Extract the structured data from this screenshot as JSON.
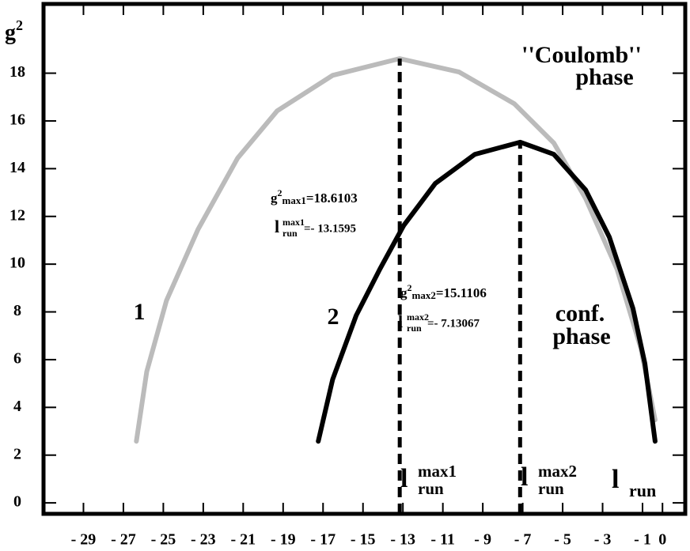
{
  "chart_data": {
    "type": "line",
    "ylabel": "g",
    "ylabel_sup": "2",
    "xlim": [
      -31,
      1.14
    ],
    "ylim": [
      -0.46,
      20.9
    ],
    "xticks": [
      {
        "value": -29,
        "label": "- 29"
      },
      {
        "value": -27,
        "label": "- 27"
      },
      {
        "value": -25,
        "label": "- 25"
      },
      {
        "value": -23,
        "label": "- 23"
      },
      {
        "value": -21,
        "label": "- 21"
      },
      {
        "value": -19,
        "label": "- 19"
      },
      {
        "value": -17,
        "label": "- 17"
      },
      {
        "value": -15,
        "label": "- 15"
      },
      {
        "value": -13,
        "label": "- 13"
      },
      {
        "value": -11,
        "label": "- 11"
      },
      {
        "value": -9,
        "label": "- 9"
      },
      {
        "value": -7,
        "label": "- 7"
      },
      {
        "value": -5,
        "label": "- 5"
      },
      {
        "value": -3,
        "label": "- 3"
      },
      {
        "value": -1,
        "label": "- 1"
      },
      0
    ],
    "yticks": [
      0,
      2,
      4,
      6,
      8,
      10,
      12,
      14,
      16,
      18
    ],
    "series": [
      {
        "name": "1",
        "color": "#bbbbbb",
        "x": [
          -26.35,
          -25.83,
          -24.84,
          -23.26,
          -21.28,
          -19.3,
          -16.52,
          -13.16,
          -10.19,
          -7.42,
          -5.44,
          -3.85,
          -2.27,
          -1.08,
          -0.37
        ],
        "values": [
          2.58,
          5.5,
          8.48,
          11.46,
          14.44,
          16.42,
          17.91,
          18.61,
          18.05,
          16.72,
          15.07,
          12.75,
          9.77,
          6.46,
          3.48
        ]
      },
      {
        "name": "2",
        "color": "#000000",
        "x": [
          -17.24,
          -16.52,
          -15.34,
          -14.15,
          -12.96,
          -11.38,
          -9.4,
          -7.13,
          -5.44,
          -3.85,
          -2.66,
          -1.48,
          -0.88,
          -0.37
        ],
        "values": [
          2.58,
          5.17,
          7.85,
          9.8,
          11.62,
          13.38,
          14.6,
          15.11,
          14.6,
          13.11,
          11.13,
          8.15,
          5.83,
          2.58
        ]
      }
    ],
    "vlines": [
      {
        "x": -13.1595,
        "y": 18.6103
      },
      {
        "x": -7.13067,
        "y": 15.1106
      }
    ],
    "region_labels": [
      "''Coulomb''",
      "phase",
      "conf.",
      "phase"
    ],
    "peak_labels": [
      {
        "g": "g",
        "g_sup": "2",
        "g_sub": "max1",
        "g_value": "=18.6103",
        "l": "l",
        "l_sup": "max1",
        "l_sub": "run",
        "l_value": "=- 13.1595"
      },
      {
        "g": "g",
        "g_sup": "2",
        "g_sub": "max2",
        "g_value": "=15.1106",
        "l": "l",
        "l_sup": "max2",
        "l_sub": "run",
        "l_value": "=- 7.13067"
      }
    ],
    "axis_marks": [
      {
        "l": "l",
        "sup": "max1",
        "sub": "run"
      },
      {
        "l": "l",
        "sup": "max2",
        "sub": "run"
      },
      {
        "l": "l",
        "sub": "run"
      }
    ]
  }
}
